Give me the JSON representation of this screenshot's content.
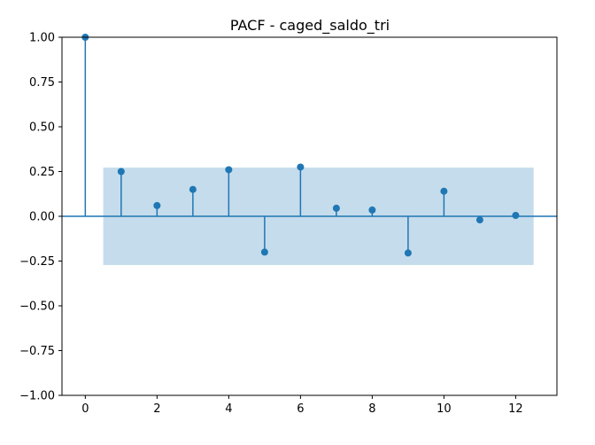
{
  "chart_data": {
    "type": "stem",
    "title": "PACF - caged_saldo_tri",
    "xlabel": "",
    "ylabel": "",
    "xlim": [
      -0.65,
      13.15
    ],
    "ylim": [
      -1.0,
      1.0
    ],
    "x_ticks": [
      0,
      2,
      4,
      6,
      8,
      10,
      12
    ],
    "x_tick_labels": [
      "0",
      "2",
      "4",
      "6",
      "8",
      "10",
      "12"
    ],
    "y_ticks": [
      -1.0,
      -0.75,
      -0.5,
      -0.25,
      0.0,
      0.25,
      0.5,
      0.75,
      1.0
    ],
    "y_tick_labels": [
      "−1.00",
      "−0.75",
      "−0.50",
      "−0.25",
      "0.00",
      "0.25",
      "0.50",
      "0.75",
      "1.00"
    ],
    "grid": false,
    "x": [
      0,
      1,
      2,
      3,
      4,
      5,
      6,
      7,
      8,
      9,
      10,
      11,
      12
    ],
    "values": [
      1.0,
      0.25,
      0.06,
      0.15,
      0.26,
      -0.2,
      0.275,
      0.045,
      0.035,
      -0.205,
      0.14,
      -0.02,
      0.005
    ],
    "confidence_band": {
      "x_range": [
        0.5,
        12.5
      ],
      "upper": 0.272,
      "lower": -0.272
    },
    "colors": {
      "stem": "#1f77b4",
      "band": "#c5dcec",
      "axis": "#000000"
    }
  }
}
